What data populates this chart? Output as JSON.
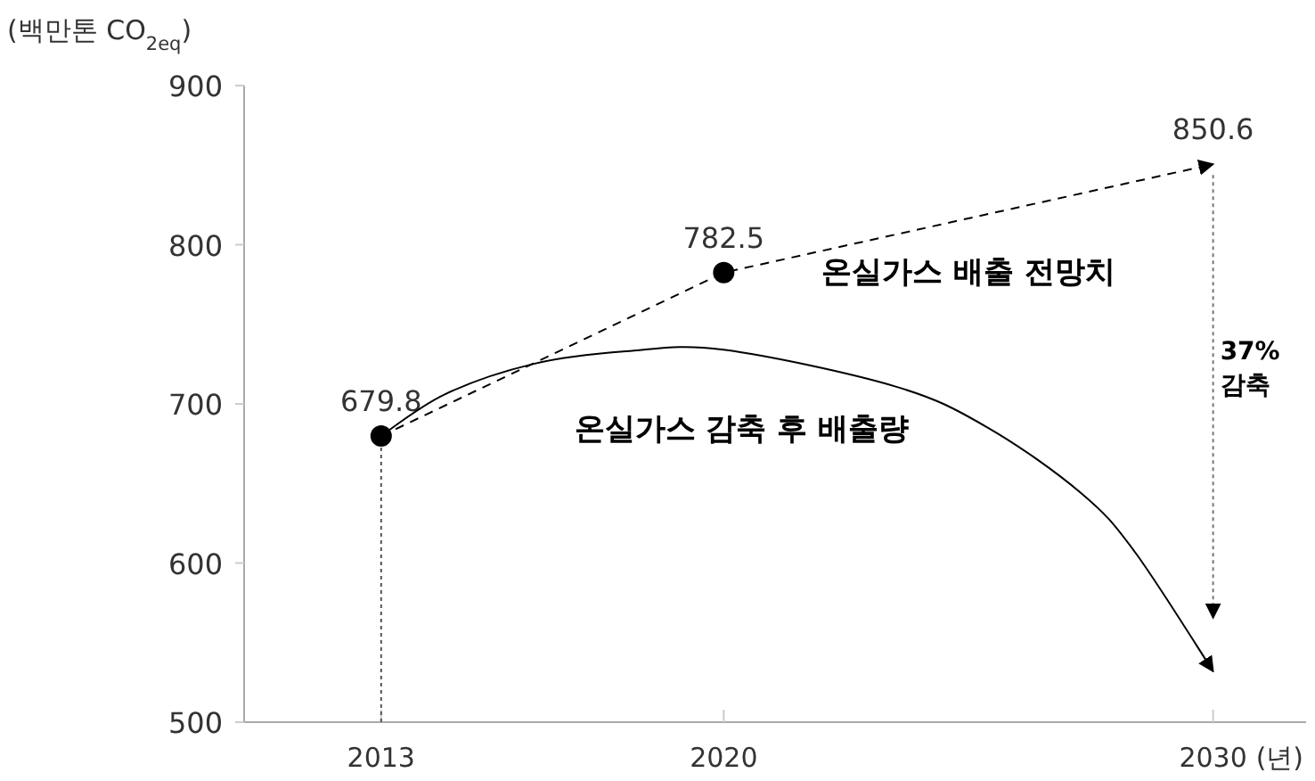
{
  "chart_data": {
    "type": "line",
    "ylabel": "(백만톤 CO$_{2eq}$)",
    "xlabel": "(년)",
    "xlim": [
      2010.2,
      2031.9
    ],
    "xticks": [
      2013,
      2020,
      2030
    ],
    "ylim": [
      500,
      900
    ],
    "yticks": [
      500,
      600,
      700,
      800,
      900
    ],
    "grid": false,
    "legend": false,
    "series": [
      {
        "name": "온실가스 배출 전망치",
        "color": "#000000",
        "line_style": "dashed",
        "marker": "circle",
        "x": [
          2013,
          2020,
          2030
        ],
        "values": [
          679.8,
          782.5,
          850.6
        ],
        "value_labels": [
          "679.8",
          "782.5",
          "850.6"
        ]
      },
      {
        "name": "온실가스 감축 후 배출량",
        "color": "#000000",
        "line_style": "solid",
        "marker": "none",
        "x": [
          2013,
          2014.3,
          2016.1,
          2018,
          2020,
          2023.5,
          2025.4,
          2027.3,
          2028.4,
          2030
        ],
        "values": [
          680,
          706,
          725,
          733,
          734,
          711,
          685,
          644,
          607,
          532
        ]
      }
    ],
    "ref_lines": [
      {
        "axis": "x",
        "value": 2013,
        "line_style": "dotted",
        "color": "#555555"
      }
    ],
    "annotations": [
      "37% 감축"
    ]
  }
}
